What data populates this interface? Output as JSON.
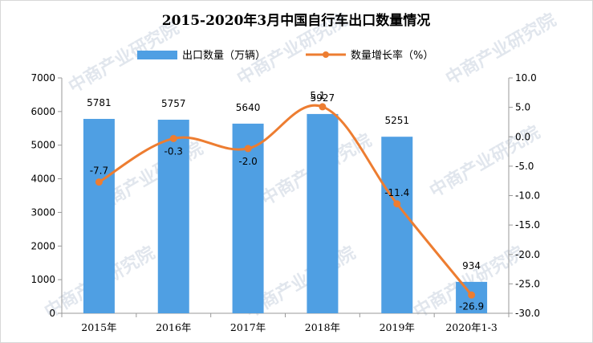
{
  "chart_data": {
    "type": "bar",
    "title": "2015-2020年3月中国自行车出口数量情况",
    "categories": [
      "2015年",
      "2016年",
      "2017年",
      "2018年",
      "2019年",
      "2020年1-3"
    ],
    "series": [
      {
        "name": "出口数量（万辆）",
        "type": "bar",
        "axis": "left",
        "values": [
          5781,
          5757,
          5640,
          5927,
          5251,
          934
        ],
        "color": "#4f9fe3"
      },
      {
        "name": "数量增长率（%）",
        "type": "line",
        "axis": "right",
        "values": [
          -7.7,
          -0.3,
          -2.0,
          5.1,
          -11.4,
          -26.9
        ],
        "color": "#ed7d31"
      }
    ],
    "bar_labels": [
      "5781",
      "5757",
      "5640",
      "5927",
      "5251",
      "934"
    ],
    "line_labels": [
      "-7.7",
      "-0.3",
      "-2.0",
      "5.1",
      "-11.4",
      "-26.9"
    ],
    "y_left": {
      "min": 0,
      "max": 7000,
      "ticks": [
        "0",
        "1000",
        "2000",
        "3000",
        "4000",
        "5000",
        "6000",
        "7000"
      ]
    },
    "y_right": {
      "min": -30,
      "max": 10,
      "ticks": [
        "-30.0",
        "-25.0",
        "-20.0",
        "-15.0",
        "-10.0",
        "-5.0",
        "0.0",
        "5.0",
        "10.0"
      ]
    },
    "legend_position": "top-center",
    "grid": false
  },
  "watermark": {
    "text": "中商产业研究院"
  }
}
